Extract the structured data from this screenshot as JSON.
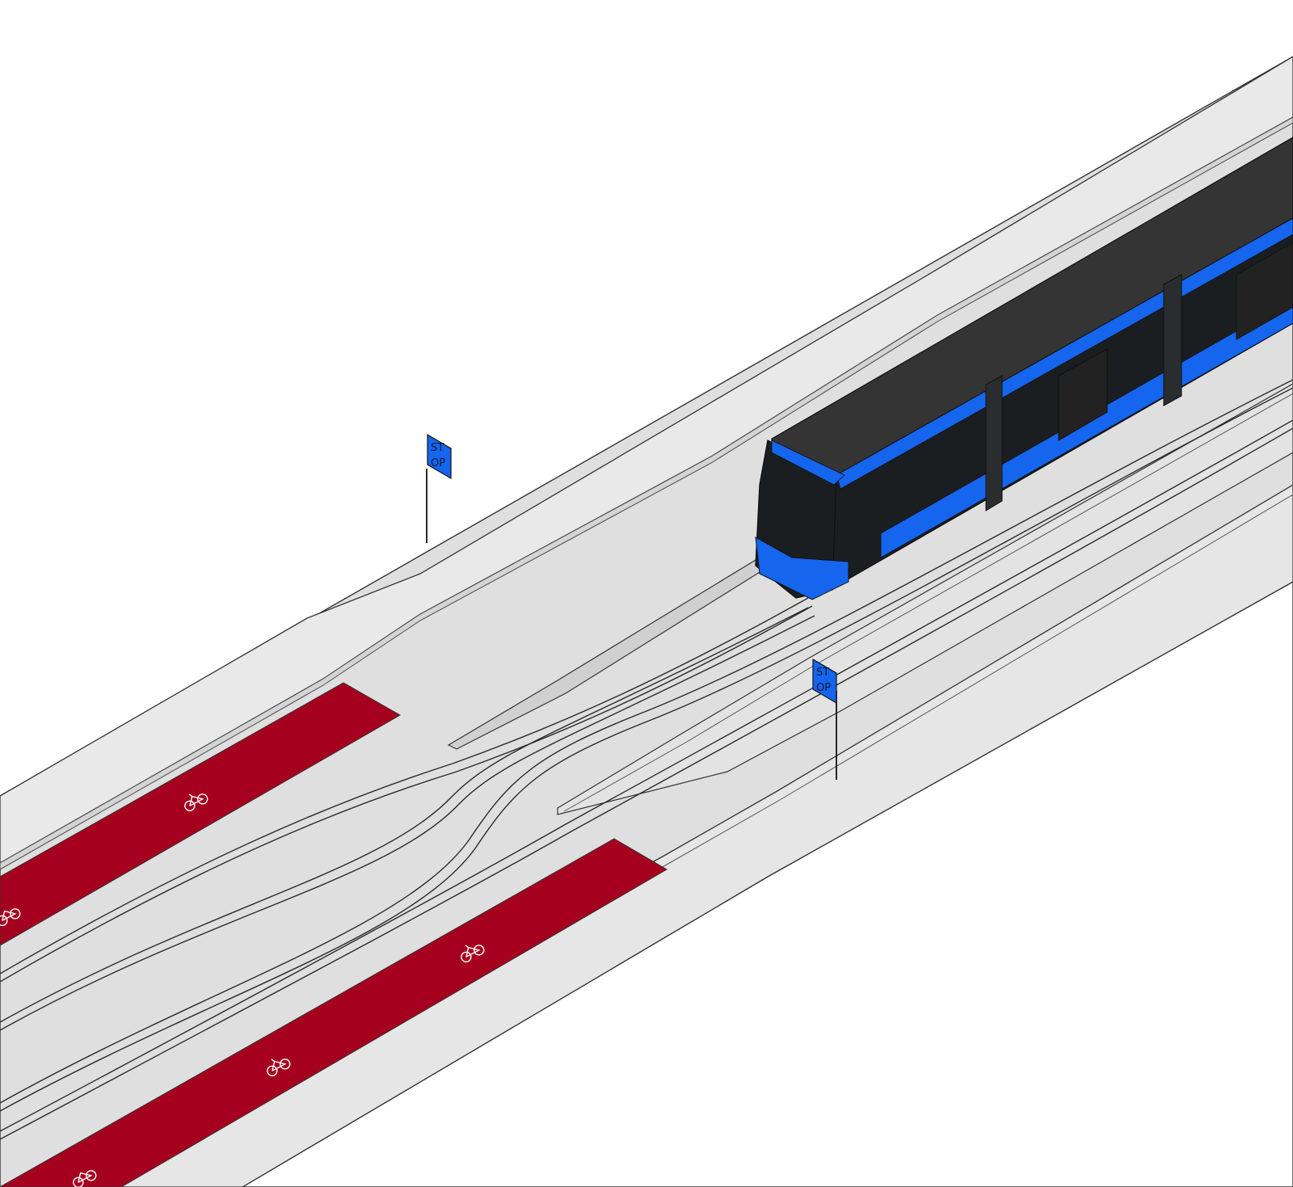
{
  "scene": {
    "colors": {
      "background": "#ffffff",
      "pavement": "#dcdcdc",
      "sidewalk": "#e6e6e6",
      "bike_lane": "#a6001f",
      "tram_body": "#1b1e20",
      "tram_roof": "#343434",
      "tram_accent": "#1565ee",
      "sign": "#1565ee"
    },
    "icons": [
      "bicycle-icon",
      "stop-sign",
      "tram"
    ],
    "stop_sign_north": {
      "line1": "ST",
      "line2": "OP"
    },
    "stop_sign_south": {
      "line1": "ST",
      "line2": "OP"
    }
  }
}
